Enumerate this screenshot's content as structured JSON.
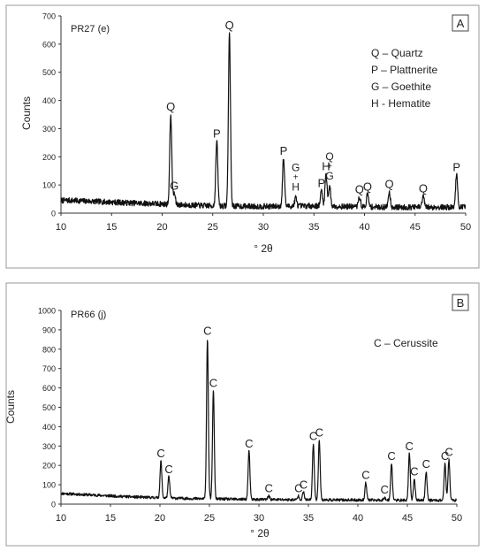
{
  "chart_data": [
    {
      "type": "line",
      "panel_label": "A",
      "sample_label": "PR27 (e)",
      "xlabel": "° 2θ",
      "ylabel": "Counts",
      "xlim": [
        10,
        50
      ],
      "ylim": [
        0,
        700
      ],
      "xticks": [
        10,
        15,
        20,
        25,
        30,
        35,
        40,
        45,
        50
      ],
      "yticks": [
        0,
        100,
        200,
        300,
        400,
        500,
        600,
        700
      ],
      "grid": false,
      "legend_position": "top-right",
      "legend": [
        "Q – Quartz",
        "P – Plattnerite",
        "G – Goethite",
        "H - Hematite"
      ],
      "baseline": [
        [
          10,
          45
        ],
        [
          11,
          45
        ],
        [
          13,
          42
        ],
        [
          15,
          39
        ],
        [
          17,
          36
        ],
        [
          19,
          34
        ],
        [
          21,
          31
        ],
        [
          23,
          28
        ],
        [
          25,
          26
        ],
        [
          27,
          25
        ],
        [
          29,
          24
        ],
        [
          31,
          24
        ],
        [
          33,
          25
        ],
        [
          35,
          26
        ],
        [
          37,
          24
        ],
        [
          39,
          23
        ],
        [
          41,
          22
        ],
        [
          43,
          21
        ],
        [
          45,
          21
        ],
        [
          47,
          21
        ],
        [
          49,
          21
        ],
        [
          50,
          21
        ]
      ],
      "peaks": [
        {
          "x": 20.85,
          "h": 320,
          "label": "Q"
        },
        {
          "x": 21.2,
          "h": 40,
          "label": "G"
        },
        {
          "x": 25.4,
          "h": 230,
          "label": "P"
        },
        {
          "x": 26.65,
          "h": 615,
          "label": "Q"
        },
        {
          "x": 32.0,
          "h": 170,
          "label": "P"
        },
        {
          "x": 33.2,
          "h": 30,
          "label": "G + H"
        },
        {
          "x": 35.75,
          "h": 55,
          "label": "P"
        },
        {
          "x": 36.2,
          "h": 115,
          "label": "H"
        },
        {
          "x": 36.55,
          "h": 70,
          "label": "Q + G"
        },
        {
          "x": 39.5,
          "h": 35,
          "label": "Q"
        },
        {
          "x": 40.3,
          "h": 45,
          "label": "Q"
        },
        {
          "x": 42.45,
          "h": 55,
          "label": "Q"
        },
        {
          "x": 45.8,
          "h": 40,
          "label": "Q"
        },
        {
          "x": 49.1,
          "h": 115,
          "label": "P"
        }
      ]
    },
    {
      "type": "line",
      "panel_label": "B",
      "sample_label": "PR66 (j)",
      "xlabel": "° 2θ",
      "ylabel": "Counts",
      "xlim": [
        10,
        50
      ],
      "ylim": [
        0,
        1000
      ],
      "xticks": [
        10,
        15,
        20,
        25,
        30,
        35,
        40,
        45,
        50
      ],
      "yticks": [
        0,
        100,
        200,
        300,
        400,
        500,
        600,
        700,
        800,
        900,
        1000
      ],
      "grid": false,
      "legend_position": "top-right",
      "legend": [
        "C – Cerussite"
      ],
      "baseline": [
        [
          10,
          55
        ],
        [
          12,
          50
        ],
        [
          14,
          45
        ],
        [
          16,
          40
        ],
        [
          18,
          36
        ],
        [
          20,
          33
        ],
        [
          22,
          30
        ],
        [
          25,
          27
        ],
        [
          30,
          24
        ],
        [
          35,
          22
        ],
        [
          40,
          21
        ],
        [
          45,
          20
        ],
        [
          50,
          20
        ]
      ],
      "peaks": [
        {
          "x": 20.1,
          "h": 190,
          "label": "C"
        },
        {
          "x": 20.9,
          "h": 110,
          "label": "C"
        },
        {
          "x": 24.8,
          "h": 830,
          "label": "C"
        },
        {
          "x": 25.4,
          "h": 560,
          "label": "C"
        },
        {
          "x": 29.0,
          "h": 250,
          "label": "C"
        },
        {
          "x": 31.0,
          "h": 20,
          "label": "C"
        },
        {
          "x": 34.0,
          "h": 20,
          "label": "C"
        },
        {
          "x": 34.5,
          "h": 40,
          "label": "C"
        },
        {
          "x": 35.5,
          "h": 290,
          "label": "C"
        },
        {
          "x": 36.1,
          "h": 310,
          "label": "C"
        },
        {
          "x": 40.8,
          "h": 90,
          "label": "C"
        },
        {
          "x": 42.7,
          "h": 15,
          "label": "C"
        },
        {
          "x": 43.4,
          "h": 190,
          "label": "C"
        },
        {
          "x": 45.2,
          "h": 240,
          "label": "C"
        },
        {
          "x": 45.7,
          "h": 110,
          "label": "C"
        },
        {
          "x": 46.9,
          "h": 150,
          "label": "C"
        },
        {
          "x": 48.8,
          "h": 190,
          "label": "C"
        },
        {
          "x": 49.2,
          "h": 210,
          "label": "C"
        }
      ]
    }
  ]
}
